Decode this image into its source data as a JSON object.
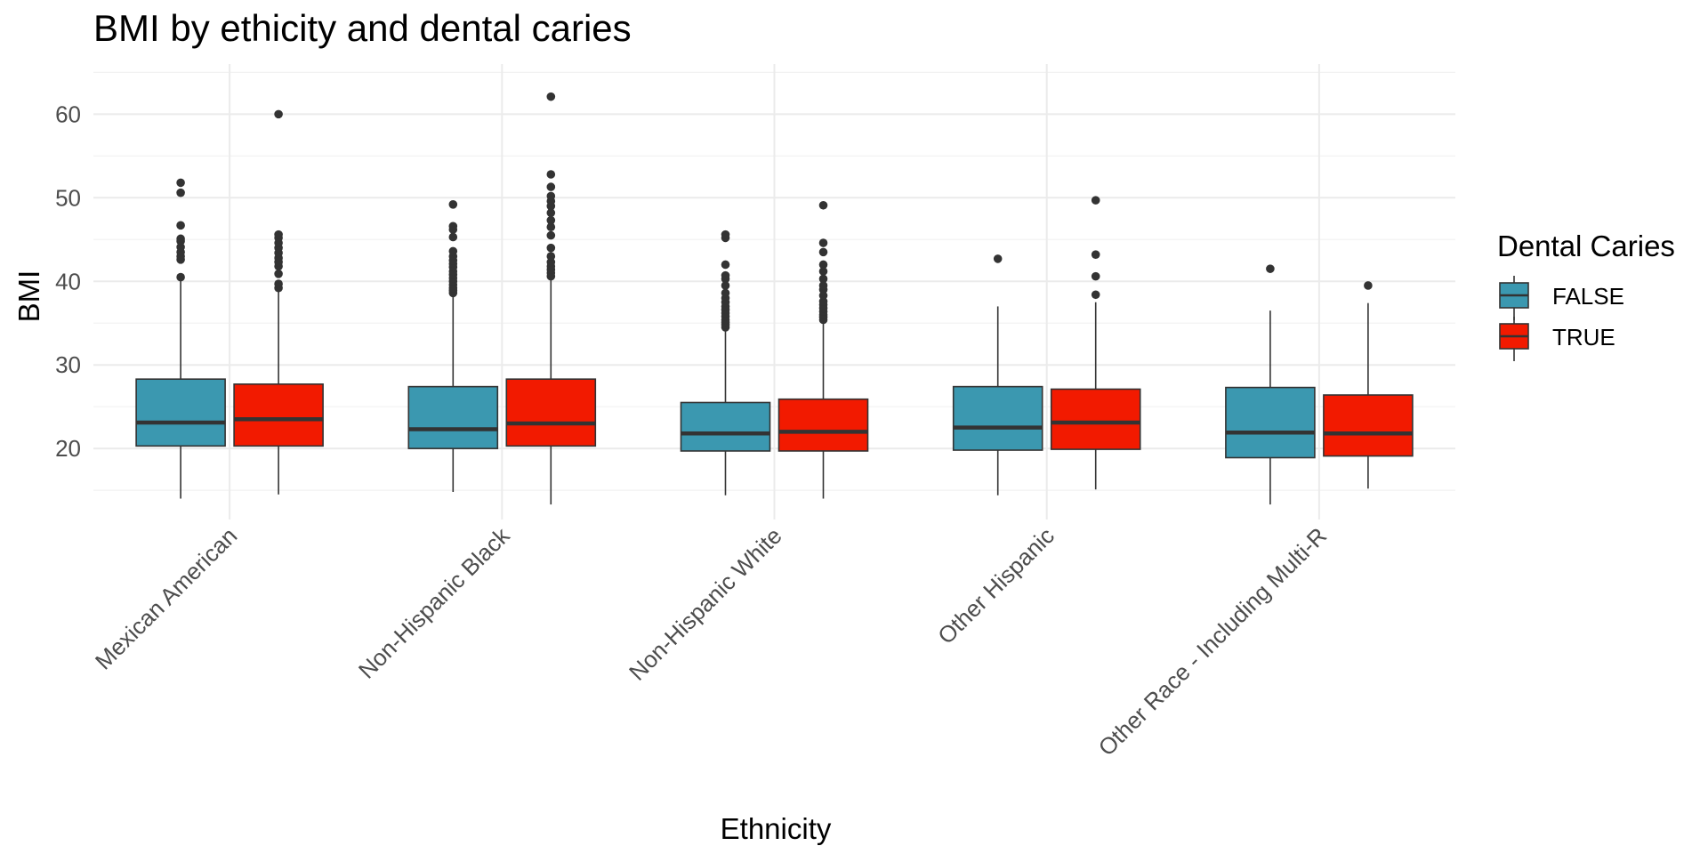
{
  "chart_data": {
    "type": "boxplot",
    "title": "BMI by ethicity and dental caries",
    "xlabel": "Ethnicity",
    "ylabel": "BMI",
    "ylim": [
      11.5,
      66
    ],
    "yticks": [
      20,
      30,
      40,
      50,
      60
    ],
    "grid": true,
    "categories": [
      "Mexican American",
      "Non-Hispanic Black",
      "Non-Hispanic White",
      "Other Hispanic",
      "Other Race - Including Multi-R"
    ],
    "legend": {
      "title": "Dental Caries",
      "position": "right"
    },
    "series": [
      {
        "name": "FALSE",
        "color": "#3b98b0",
        "boxes": [
          {
            "whisker_low": 14.0,
            "q1": 20.3,
            "median": 23.1,
            "q3": 28.3,
            "whisker_high": 40.2,
            "outliers": [
              40.5,
              42.6,
              43.0,
              43.5,
              44.1,
              44.8,
              45.1,
              46.7,
              50.6,
              51.8
            ]
          },
          {
            "whisker_low": 14.8,
            "q1": 20.0,
            "median": 22.3,
            "q3": 27.4,
            "whisker_high": 38.4,
            "outliers": [
              38.6,
              38.9,
              39.2,
              39.6,
              40.0,
              40.4,
              40.8,
              41.2,
              41.7,
              42.1,
              42.5,
              43.0,
              43.6,
              45.3,
              46.2,
              46.6,
              49.2
            ]
          },
          {
            "whisker_low": 14.4,
            "q1": 19.7,
            "median": 21.8,
            "q3": 25.5,
            "whisker_high": 34.3,
            "outliers": [
              34.5,
              34.8,
              35.1,
              35.4,
              35.8,
              36.2,
              36.6,
              37.0,
              37.5,
              38.0,
              38.6,
              39.5,
              40.3,
              40.7,
              42.0,
              45.2,
              45.6
            ]
          },
          {
            "whisker_low": 14.4,
            "q1": 19.8,
            "median": 22.5,
            "q3": 27.4,
            "whisker_high": 37.0,
            "outliers": [
              42.7
            ]
          },
          {
            "whisker_low": 13.3,
            "q1": 18.9,
            "median": 21.9,
            "q3": 27.3,
            "whisker_high": 36.5,
            "outliers": [
              41.5
            ]
          }
        ]
      },
      {
        "name": "TRUE",
        "color": "#f21a00",
        "boxes": [
          {
            "whisker_low": 14.5,
            "q1": 20.3,
            "median": 23.5,
            "q3": 27.7,
            "whisker_high": 38.9,
            "outliers": [
              39.2,
              39.7,
              40.9,
              41.8,
              42.3,
              42.8,
              43.4,
              44.0,
              44.6,
              45.2,
              45.6,
              60.0
            ]
          },
          {
            "whisker_low": 13.3,
            "q1": 20.3,
            "median": 23.0,
            "q3": 28.3,
            "whisker_high": 40.3,
            "outliers": [
              40.6,
              41.0,
              41.4,
              41.8,
              42.3,
              43.0,
              44.0,
              45.5,
              46.5,
              47.3,
              48.2,
              49.0,
              49.6,
              50.2,
              51.3,
              52.8,
              62.1
            ]
          },
          {
            "whisker_low": 14.0,
            "q1": 19.7,
            "median": 22.0,
            "q3": 25.9,
            "whisker_high": 35.2,
            "outliers": [
              35.4,
              35.7,
              36.0,
              36.4,
              36.8,
              37.2,
              37.6,
              38.3,
              39.0,
              39.5,
              40.3,
              41.2,
              42.0,
              43.5,
              44.6,
              49.1
            ]
          },
          {
            "whisker_low": 15.1,
            "q1": 19.9,
            "median": 23.1,
            "q3": 27.1,
            "whisker_high": 37.5,
            "outliers": [
              38.4,
              40.6,
              43.2,
              49.7
            ]
          },
          {
            "whisker_low": 15.2,
            "q1": 19.1,
            "median": 21.8,
            "q3": 26.4,
            "whisker_high": 37.4,
            "outliers": [
              39.5
            ]
          }
        ]
      }
    ]
  }
}
